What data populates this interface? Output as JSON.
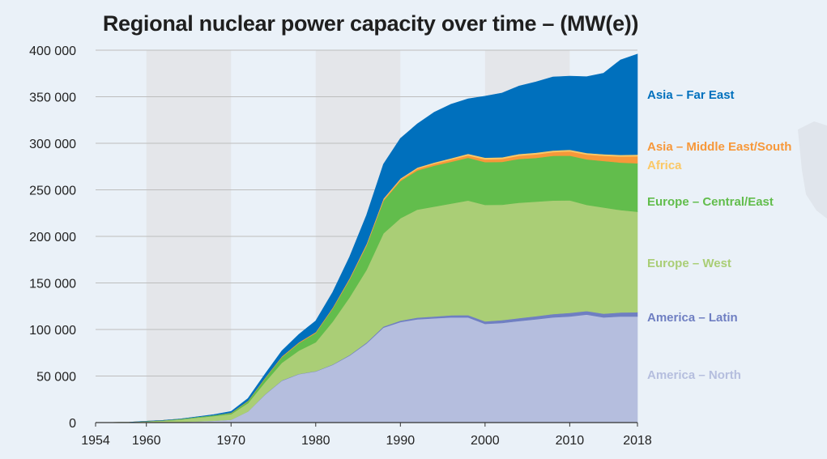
{
  "chart_data": {
    "type": "area",
    "stacked": true,
    "title": "Regional nuclear power capacity over time – (MW(e))",
    "xlabel": "",
    "ylabel": "",
    "xlim": [
      1954,
      2018
    ],
    "ylim": [
      0,
      400000
    ],
    "x_ticks": [
      1954,
      1960,
      1970,
      1980,
      1990,
      2000,
      2010,
      2018
    ],
    "y_ticks": [
      0,
      50000,
      100000,
      150000,
      200000,
      250000,
      300000,
      350000,
      400000
    ],
    "y_tick_labels": [
      "0",
      "50 000",
      "100 000",
      "150 000",
      "200 000",
      "250 000",
      "300 000",
      "350 000",
      "400 000"
    ],
    "shaded_decades": [
      [
        1960,
        1970
      ],
      [
        1980,
        1990
      ],
      [
        2000,
        2010
      ]
    ],
    "grid": true,
    "legend_placement": "right",
    "x": [
      1954,
      1956,
      1958,
      1960,
      1962,
      1964,
      1966,
      1968,
      1970,
      1972,
      1974,
      1976,
      1978,
      1980,
      1982,
      1984,
      1986,
      1988,
      1990,
      1992,
      1994,
      1996,
      1998,
      2000,
      2002,
      2004,
      2006,
      2008,
      2010,
      2012,
      2014,
      2016,
      2018
    ],
    "series": [
      {
        "name": "America – North",
        "color": "#b5bede",
        "values": [
          0,
          0,
          0,
          200,
          500,
          700,
          1200,
          2000,
          3000,
          12000,
          30000,
          45000,
          52000,
          55000,
          62000,
          72000,
          85000,
          102000,
          108000,
          111000,
          112000,
          113000,
          113000,
          106000,
          107000,
          109000,
          111000,
          113000,
          114000,
          116000,
          113000,
          114000,
          114000
        ]
      },
      {
        "name": "America – Latin",
        "color": "#6f7fc2",
        "values": [
          0,
          0,
          0,
          0,
          0,
          0,
          0,
          0,
          0,
          0,
          300,
          300,
          300,
          300,
          400,
          600,
          1000,
          1200,
          1500,
          1800,
          2000,
          2200,
          2500,
          2800,
          3000,
          3200,
          3300,
          3500,
          3800,
          3800,
          4000,
          4300,
          4500
        ]
      },
      {
        "name": "Europe – West",
        "color": "#aace76",
        "values": [
          0,
          100,
          300,
          1000,
          1500,
          2500,
          4000,
          5000,
          6000,
          9000,
          13000,
          19000,
          25000,
          31000,
          46000,
          62000,
          78000,
          100000,
          110000,
          116000,
          118000,
          120000,
          123000,
          125000,
          124000,
          124000,
          123000,
          122000,
          121000,
          114000,
          114000,
          110000,
          108000
        ]
      },
      {
        "name": "Europe – Central/East",
        "color": "#62bd4c",
        "values": [
          0,
          50,
          100,
          300,
          400,
          600,
          800,
          1000,
          1200,
          2000,
          4000,
          6000,
          8000,
          10000,
          14000,
          19000,
          26000,
          35000,
          40000,
          42000,
          44000,
          45000,
          46000,
          46000,
          46000,
          47000,
          47000,
          48000,
          48000,
          49000,
          50000,
          51000,
          52000
        ]
      },
      {
        "name": "Asia – Middle East/South",
        "color": "#f7983a",
        "values": [
          0,
          0,
          0,
          0,
          0,
          0,
          0,
          0,
          300,
          500,
          700,
          800,
          900,
          1000,
          1100,
          1200,
          1300,
          1400,
          1500,
          1800,
          2000,
          2200,
          2500,
          3000,
          3200,
          3500,
          3800,
          4000,
          4500,
          5000,
          5500,
          6500,
          7500
        ]
      },
      {
        "name": "Africa",
        "color": "#fbc865",
        "values": [
          0,
          0,
          0,
          0,
          0,
          0,
          0,
          0,
          0,
          0,
          0,
          0,
          0,
          0,
          0,
          300,
          600,
          1000,
          1200,
          1300,
          1400,
          1600,
          1700,
          1800,
          1800,
          1800,
          1800,
          1800,
          1800,
          1800,
          1800,
          1800,
          1800
        ]
      },
      {
        "name": "Asia – Far East",
        "color": "#0070bd",
        "values": [
          0,
          0,
          0,
          0,
          0,
          100,
          300,
          700,
          1500,
          2500,
          4000,
          6000,
          8500,
          12000,
          16500,
          23000,
          31000,
          37000,
          43000,
          47000,
          54000,
          58000,
          59000,
          66000,
          69000,
          73000,
          76000,
          79000,
          79000,
          82000,
          87000,
          102000,
          108000
        ]
      }
    ],
    "legend_entries": [
      {
        "label": "Asia – Far East",
        "color": "#0070bd"
      },
      {
        "label": "Asia – Middle East/South",
        "color": "#f7983a"
      },
      {
        "label": "Africa",
        "color": "#fbc865"
      },
      {
        "label": "Europe – Central/East",
        "color": "#62bd4c"
      },
      {
        "label": "Europe – West",
        "color": "#aace76"
      },
      {
        "label": "America – Latin",
        "color": "#6f7fc2"
      },
      {
        "label": "America – North",
        "color": "#b5bede"
      }
    ],
    "colors": {
      "background": "#eaf1f8",
      "shaded_decade": "#e4e6ea",
      "gridline": "#bdbdbd",
      "axis": "#333333"
    }
  }
}
